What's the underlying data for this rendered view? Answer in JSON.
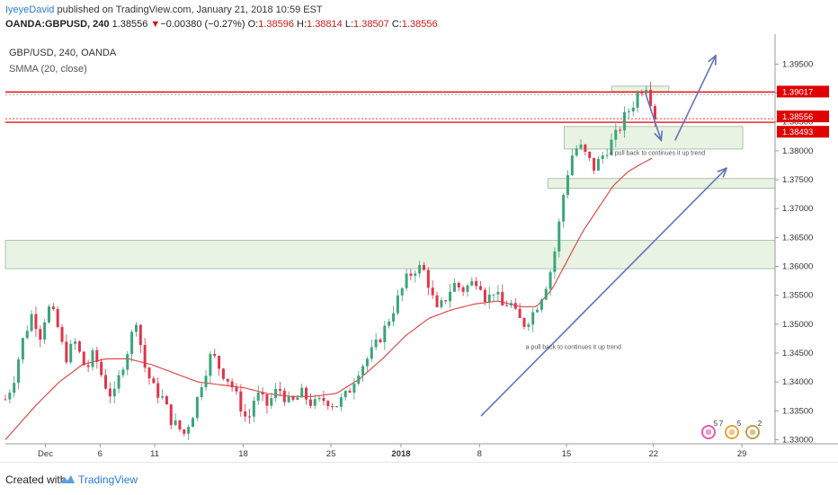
{
  "header": {
    "author": "IyeyeDavid",
    "published": "published on TradingView.com, January 21, 2018 10:59 EST",
    "symbol": "OANDA:GBPUSD, 240",
    "last": "1.38556",
    "change": "−0.00380 (−0.27%)",
    "o_label": "O:",
    "o_value": "1.38596",
    "h_label": "H:",
    "h_value": "1.38814",
    "l_label": "L:",
    "l_value": "1.38507",
    "c_label": "C:",
    "c_value": "1.38556"
  },
  "legend": {
    "symbol": "GBP/USD, 240, OANDA",
    "indicator": "SMMA (20, close)"
  },
  "footer": {
    "created": "Created with",
    "brand": "TradingView"
  },
  "colors": {
    "up": "#3aa57a",
    "down": "#e0344a",
    "smma": "#e23c3c",
    "level": "#e00000",
    "zone_fill": "#e3f0dc",
    "zone_stroke": "#9ab89a",
    "arrow": "#6474bb",
    "axis_text": "#333333"
  },
  "chart_data": {
    "type": "candlestick",
    "title": "GBP/USD, 240, OANDA",
    "timeframe": "240",
    "ylim": [
      1.3293,
      1.3977
    ],
    "y_ticks": [
      1.33,
      1.335,
      1.34,
      1.345,
      1.35,
      1.355,
      1.36,
      1.365,
      1.37,
      1.375,
      1.38,
      1.385,
      1.39,
      1.395
    ],
    "y_tick_labels": [
      "1.33000",
      "1.33500",
      "1.34000",
      "1.34500",
      "1.35000",
      "1.35500",
      "1.36000",
      "1.36500",
      "1.37000",
      "1.37500",
      "1.38000",
      "1.38500",
      "1.39000",
      "1.39500"
    ],
    "x_labels": [
      {
        "label": "Dec",
        "pos": 0.052,
        "bold": false
      },
      {
        "label": "6",
        "pos": 0.123,
        "bold": false
      },
      {
        "label": "11",
        "pos": 0.194,
        "bold": false
      },
      {
        "label": "18",
        "pos": 0.309,
        "bold": false
      },
      {
        "label": "25",
        "pos": 0.423,
        "bold": false
      },
      {
        "label": "2018",
        "pos": 0.514,
        "bold": true
      },
      {
        "label": "8",
        "pos": 0.616,
        "bold": false
      },
      {
        "label": "15",
        "pos": 0.729,
        "bold": false
      },
      {
        "label": "22",
        "pos": 0.842,
        "bold": false
      },
      {
        "label": "29",
        "pos": 0.957,
        "bold": false
      }
    ],
    "price_levels": [
      {
        "value": 1.39017,
        "label": "1.39017",
        "color": "#e00000"
      },
      {
        "value": 1.38556,
        "label": "1.38556",
        "color": "#e00000"
      },
      {
        "value": 1.38493,
        "label": "1.38493",
        "color": "#e00000"
      }
    ],
    "zones": [
      {
        "y_top": 1.3645,
        "y_bottom": 1.3596,
        "x_start": 0.0,
        "x_end": 1.0
      },
      {
        "y_top": 1.3752,
        "y_bottom": 1.3735,
        "x_start": 0.705,
        "x_end": 1.0
      },
      {
        "y_top": 1.3842,
        "y_bottom": 1.3803,
        "x_start": 0.726,
        "x_end": 0.958
      },
      {
        "y_top": 1.3912,
        "y_bottom": 1.3902,
        "x_start": 0.788,
        "x_end": 0.862
      }
    ],
    "annotations": [
      {
        "text": "a pull back to continues it up trend",
        "x": 0.847,
        "y": 1.3793
      },
      {
        "text": "a pull back to continues it up trend",
        "x": 0.738,
        "y": 1.3457
      }
    ],
    "arrows": [
      {
        "x1": 0.618,
        "y1": 1.3341,
        "x2": 0.937,
        "y2": 1.377
      },
      {
        "x1": 0.87,
        "y1": 1.3818,
        "x2": 0.923,
        "y2": 1.3965
      },
      {
        "x1": 0.831,
        "y1": 1.3902,
        "x2": 0.852,
        "y2": 1.3818
      }
    ],
    "anchors": [
      [
        0.0,
        1.337
      ],
      [
        0.01,
        1.34
      ],
      [
        0.022,
        1.347
      ],
      [
        0.035,
        1.352
      ],
      [
        0.045,
        1.348
      ],
      [
        0.055,
        1.353
      ],
      [
        0.065,
        1.351
      ],
      [
        0.078,
        1.344
      ],
      [
        0.09,
        1.347
      ],
      [
        0.105,
        1.342
      ],
      [
        0.115,
        1.345
      ],
      [
        0.128,
        1.34
      ],
      [
        0.14,
        1.337
      ],
      [
        0.15,
        1.342
      ],
      [
        0.16,
        1.346
      ],
      [
        0.17,
        1.351
      ],
      [
        0.18,
        1.343
      ],
      [
        0.192,
        1.339
      ],
      [
        0.205,
        1.337
      ],
      [
        0.215,
        1.3335
      ],
      [
        0.232,
        1.331
      ],
      [
        0.245,
        1.335
      ],
      [
        0.255,
        1.34
      ],
      [
        0.268,
        1.345
      ],
      [
        0.28,
        1.342
      ],
      [
        0.292,
        1.34
      ],
      [
        0.305,
        1.336
      ],
      [
        0.315,
        1.333
      ],
      [
        0.325,
        1.338
      ],
      [
        0.34,
        1.336
      ],
      [
        0.355,
        1.339
      ],
      [
        0.37,
        1.336
      ],
      [
        0.385,
        1.338
      ],
      [
        0.4,
        1.336
      ],
      [
        0.415,
        1.337
      ],
      [
        0.43,
        1.336
      ],
      [
        0.445,
        1.338
      ],
      [
        0.458,
        1.342
      ],
      [
        0.47,
        1.344
      ],
      [
        0.48,
        1.346
      ],
      [
        0.492,
        1.349
      ],
      [
        0.502,
        1.352
      ],
      [
        0.512,
        1.355
      ],
      [
        0.522,
        1.358
      ],
      [
        0.535,
        1.36
      ],
      [
        0.545,
        1.359
      ],
      [
        0.552,
        1.356
      ],
      [
        0.56,
        1.352
      ],
      [
        0.57,
        1.354
      ],
      [
        0.582,
        1.357
      ],
      [
        0.595,
        1.356
      ],
      [
        0.605,
        1.357
      ],
      [
        0.615,
        1.358
      ],
      [
        0.625,
        1.354
      ],
      [
        0.635,
        1.356
      ],
      [
        0.645,
        1.353
      ],
      [
        0.655,
        1.354
      ],
      [
        0.665,
        1.351
      ],
      [
        0.675,
        1.35
      ],
      [
        0.688,
        1.3525
      ],
      [
        0.7,
        1.356
      ],
      [
        0.71,
        1.36
      ],
      [
        0.717,
        1.365
      ],
      [
        0.722,
        1.37
      ],
      [
        0.727,
        1.374
      ],
      [
        0.735,
        1.379
      ],
      [
        0.745,
        1.381
      ],
      [
        0.755,
        1.379
      ],
      [
        0.765,
        1.377
      ],
      [
        0.775,
        1.379
      ],
      [
        0.785,
        1.381
      ],
      [
        0.795,
        1.383
      ],
      [
        0.805,
        1.386
      ],
      [
        0.815,
        1.388
      ],
      [
        0.822,
        1.39
      ],
      [
        0.828,
        1.391
      ],
      [
        0.833,
        1.3915
      ],
      [
        0.838,
        1.389
      ],
      [
        0.844,
        1.386
      ]
    ],
    "smma_anchors": [
      [
        0.0,
        1.33
      ],
      [
        0.02,
        1.333
      ],
      [
        0.04,
        1.336
      ],
      [
        0.07,
        1.34
      ],
      [
        0.1,
        1.343
      ],
      [
        0.13,
        1.344
      ],
      [
        0.16,
        1.344
      ],
      [
        0.19,
        1.343
      ],
      [
        0.22,
        1.3415
      ],
      [
        0.25,
        1.34
      ],
      [
        0.28,
        1.3395
      ],
      [
        0.31,
        1.339
      ],
      [
        0.34,
        1.338
      ],
      [
        0.37,
        1.3375
      ],
      [
        0.4,
        1.3375
      ],
      [
        0.43,
        1.338
      ],
      [
        0.46,
        1.3405
      ],
      [
        0.49,
        1.344
      ],
      [
        0.52,
        1.348
      ],
      [
        0.55,
        1.351
      ],
      [
        0.58,
        1.3525
      ],
      [
        0.61,
        1.3535
      ],
      [
        0.64,
        1.354
      ],
      [
        0.67,
        1.353
      ],
      [
        0.69,
        1.353
      ],
      [
        0.71,
        1.356
      ],
      [
        0.73,
        1.361
      ],
      [
        0.75,
        1.366
      ],
      [
        0.77,
        1.37
      ],
      [
        0.79,
        1.374
      ],
      [
        0.81,
        1.3765
      ],
      [
        0.83,
        1.378
      ],
      [
        0.844,
        1.379
      ]
    ],
    "candle_count": 150,
    "calendar_badges": [
      "5",
      "7",
      "5",
      "2"
    ]
  }
}
